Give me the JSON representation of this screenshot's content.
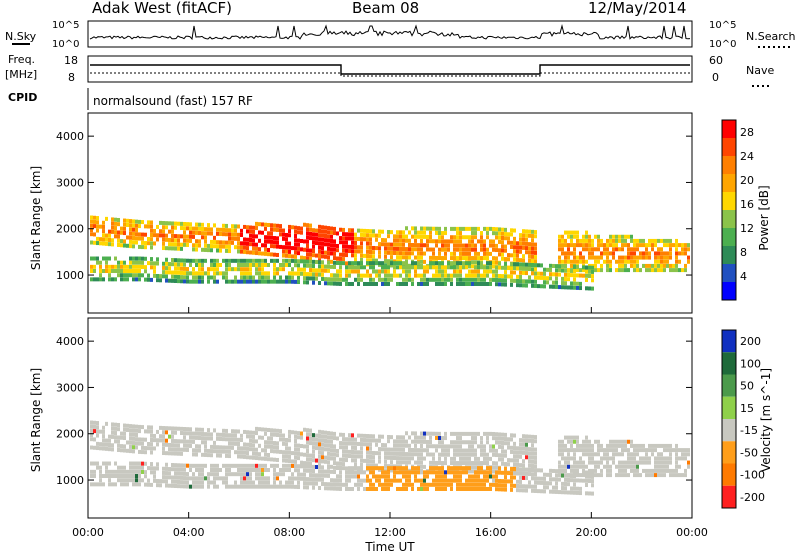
{
  "header": {
    "station": "Adak West (fitACF)",
    "beam": "Beam 08",
    "date": "12/May/2014"
  },
  "panel_labels": {
    "nsky": "N.Sky",
    "nsearch": "N.Search",
    "freq": "Freq.",
    "freq_unit": "[MHz]",
    "nave": "Nave",
    "cpid": "CPID",
    "program": "normalsound (fast) 157 RF"
  },
  "noise_axis": {
    "left_ticks": [
      "10^5",
      "10^0"
    ],
    "right_ticks": [
      "10^5",
      "10^0"
    ]
  },
  "freq_axis": {
    "left_ticks": [
      "18",
      "8"
    ],
    "right_ticks": [
      "60",
      "0"
    ]
  },
  "colors": {
    "power": [
      "#0000ff",
      "#2050c0",
      "#2e8b57",
      "#4caf50",
      "#8bc34a",
      "#ffd700",
      "#ffa500",
      "#ff7f00",
      "#ff4500",
      "#ff0000"
    ],
    "velocity": {
      "fast_toward": "#1030c0",
      "mid_toward": "#1e6a3a",
      "slow_toward": "#4b9a4b",
      "slight_toward": "#8fd04a",
      "ground_scatter": "#c8c8c0",
      "slight_away": "#ff9e1a",
      "mid_away": "#ff7a00",
      "fast_away": "#ff2020"
    }
  },
  "chart_data": [
    {
      "type": "heatmap",
      "title": "Power",
      "ylabel": "Slant Range [km]",
      "xlabel": "",
      "ylim": [
        180,
        4500
      ],
      "y_ticks": [
        1000,
        2000,
        3000,
        4000
      ],
      "colorbar": {
        "label": "Power [dB]",
        "ticks": [
          4,
          8,
          12,
          16,
          20,
          24,
          28
        ],
        "range": [
          0,
          30
        ]
      },
      "bands": [
        {
          "t": [
            0,
            12,
            24,
            36,
            48,
            60,
            72,
            84,
            96,
            108,
            120,
            132,
            144
          ],
          "center": [
            2050,
            1950,
            1900,
            1850,
            1800,
            1700,
            1650,
            1650,
            1650,
            1600,
            1550,
            1500,
            1450
          ],
          "width": [
            300,
            300,
            300,
            300,
            350,
            400,
            400,
            420,
            420,
            450,
            400,
            350,
            300
          ],
          "power": 14
        },
        {
          "t": [
            0,
            12,
            24,
            36,
            48,
            60,
            72,
            84,
            96,
            108,
            120
          ],
          "center": [
            1200,
            1200,
            1150,
            1150,
            1150,
            1100,
            1100,
            1100,
            1100,
            1050,
            1000
          ],
          "width": [
            250,
            250,
            250,
            250,
            250,
            250,
            250,
            250,
            250,
            250,
            250
          ],
          "power": 8
        }
      ]
    },
    {
      "type": "heatmap",
      "title": "Velocity",
      "ylabel": "Slant Range [km]",
      "xlabel": "Time UT",
      "ylim": [
        180,
        4500
      ],
      "y_ticks": [
        1000,
        2000,
        3000,
        4000
      ],
      "x_ticks": [
        "00:00",
        "04:00",
        "08:00",
        "12:00",
        "16:00",
        "20:00",
        "00:00"
      ],
      "colorbar": {
        "label": "Velocity [m s^-1]",
        "ticks": [
          200,
          100,
          50,
          15,
          -15,
          -50,
          -100,
          -200
        ],
        "range": [
          -250,
          250
        ]
      }
    }
  ]
}
